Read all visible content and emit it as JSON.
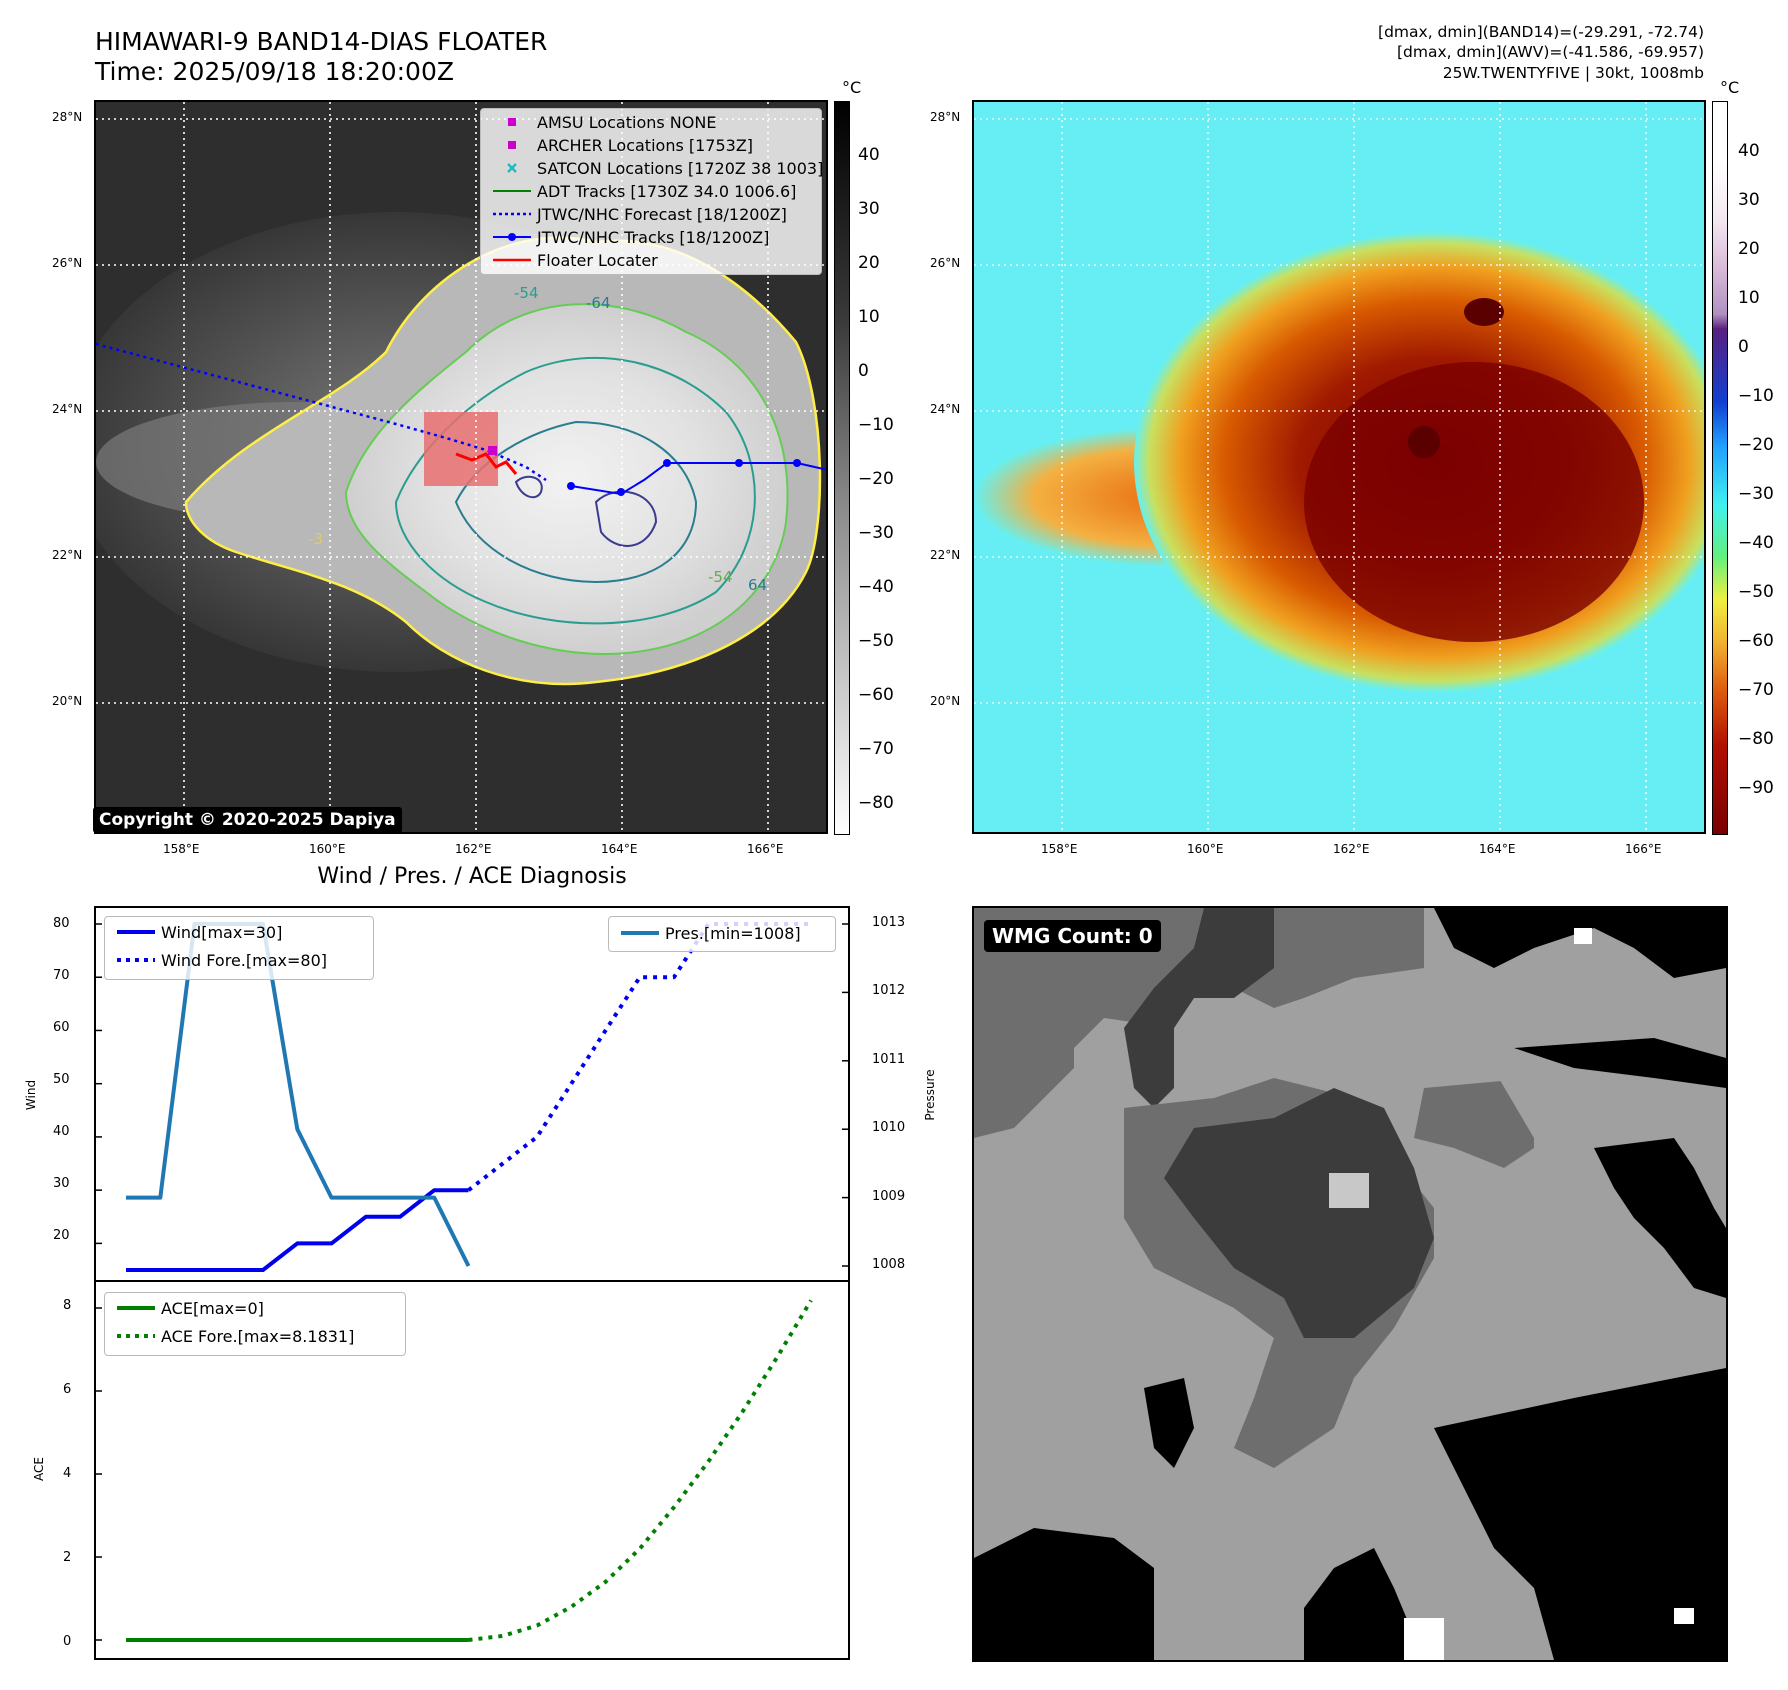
{
  "header": {
    "title_line1": "HIMAWARI-9 BAND14-DIAS FLOATER",
    "title_line2": "Time: 2025/09/18 18:20:00Z",
    "info_line1": "[dmax, dmin](BAND14)=(-29.291, -72.74)",
    "info_line2": "[dmax, dmin](AWV)=(-41.586, -69.957)",
    "info_line3": "25W.TWENTYFIVE | 30kt, 1008mb"
  },
  "map": {
    "lat_labels": [
      "28°N",
      "26°N",
      "24°N",
      "22°N",
      "20°N"
    ],
    "lon_labels": [
      "158°E",
      "160°E",
      "162°E",
      "164°E",
      "166°E"
    ],
    "copyright": "Copyright © 2020-2025 Dapiya",
    "contour_labels": [
      "-54",
      "-64",
      "-3",
      "-54",
      "64"
    ],
    "legend": [
      {
        "label": "AMSU Locations NONE",
        "symbol": "square",
        "color": "#cc00cc"
      },
      {
        "label": "ARCHER Locations [1753Z]",
        "symbol": "square",
        "color": "#cc00cc"
      },
      {
        "label": "SATCON Locations [1720Z 38 1003]",
        "symbol": "x",
        "color": "#22bbbb"
      },
      {
        "label": "ADT Tracks [1730Z 34.0 1006.6]",
        "symbol": "line",
        "color": "#008000"
      },
      {
        "label": "JTWC/NHC Forecast [18/1200Z]",
        "symbol": "dotted",
        "color": "#0000ff"
      },
      {
        "label": "JTWC/NHC Tracks [18/1200Z]",
        "symbol": "line-dot",
        "color": "#0000ff"
      },
      {
        "label": "Floater Locater",
        "symbol": "line",
        "color": "#ff0000"
      }
    ]
  },
  "colorbar_gray": {
    "unit": "°C",
    "ticks": [
      "40",
      "30",
      "20",
      "10",
      "0",
      "−10",
      "−20",
      "−30",
      "−40",
      "−50",
      "−60",
      "−70",
      "−80"
    ]
  },
  "colorbar_color": {
    "unit": "°C",
    "ticks": [
      "40",
      "30",
      "20",
      "10",
      "0",
      "−10",
      "−20",
      "−30",
      "−40",
      "−50",
      "−60",
      "−70",
      "−80",
      "−90"
    ]
  },
  "diagnosis": {
    "title": "Wind / Pres. / ACE Diagnosis",
    "wind_ylabel": "Wind",
    "pres_ylabel": "Pressure",
    "ace_ylabel": "ACE",
    "wind_ticks": [
      "80",
      "70",
      "60",
      "50",
      "40",
      "30",
      "20"
    ],
    "pres_ticks": [
      "1013",
      "1012",
      "1011",
      "1010",
      "1009",
      "1008"
    ],
    "ace_ticks": [
      "8",
      "6",
      "4",
      "2",
      "0"
    ],
    "legend_wind": [
      "Wind[max=30]",
      "Wind Fore.[max=80]"
    ],
    "legend_pres": [
      "Pres.[min=1008]"
    ],
    "legend_ace": [
      "ACE[max=0]",
      "ACE Fore.[max=8.1831]"
    ]
  },
  "wmg": {
    "label": "WMG Count: 0"
  },
  "colors": {
    "wind": "#0000ee",
    "pressure": "#1f77b4",
    "ace": "#008000"
  },
  "chart_data": [
    {
      "type": "line",
      "panel": "wind-pressure",
      "x": [
        0,
        1,
        2,
        3,
        4,
        5,
        6,
        7,
        8,
        9,
        10
      ],
      "series": [
        {
          "name": "Wind[max=30]",
          "axis": "left",
          "x": [
            0,
            1,
            2,
            3,
            4,
            5,
            6,
            7,
            8,
            9,
            10
          ],
          "values": [
            15,
            15,
            15,
            15,
            15,
            20,
            20,
            25,
            25,
            30,
            30
          ]
        },
        {
          "name": "Wind Fore.[max=80]",
          "axis": "left",
          "x": [
            10,
            11,
            12,
            13,
            14,
            15,
            16,
            17,
            18,
            19,
            20
          ],
          "values": [
            30,
            35,
            40,
            50,
            60,
            70,
            70,
            80,
            80,
            80,
            80
          ]
        },
        {
          "name": "Pres.[min=1008]",
          "axis": "right",
          "x": [
            0,
            1,
            2,
            3,
            4,
            5,
            6,
            7,
            8,
            9,
            10
          ],
          "values": [
            1009,
            1009,
            1013,
            1013,
            1013,
            1010,
            1009,
            1009,
            1009,
            1009,
            1008
          ]
        }
      ],
      "ylabel": "Wind",
      "ylim": [
        15,
        80
      ],
      "y2label": "Pressure",
      "y2lim": [
        1008,
        1013
      ]
    },
    {
      "type": "line",
      "panel": "ace",
      "series": [
        {
          "name": "ACE[max=0]",
          "x": [
            0,
            10
          ],
          "values": [
            0,
            0
          ]
        },
        {
          "name": "ACE Fore.[max=8.1831]",
          "x": [
            10,
            11,
            12,
            13,
            14,
            15,
            16,
            17,
            18,
            19,
            20
          ],
          "values": [
            0,
            0.1,
            0.35,
            0.8,
            1.4,
            2.2,
            3.2,
            4.3,
            5.5,
            6.8,
            8.1831
          ]
        }
      ],
      "ylabel": "ACE",
      "ylim": [
        0,
        8.5
      ]
    }
  ]
}
